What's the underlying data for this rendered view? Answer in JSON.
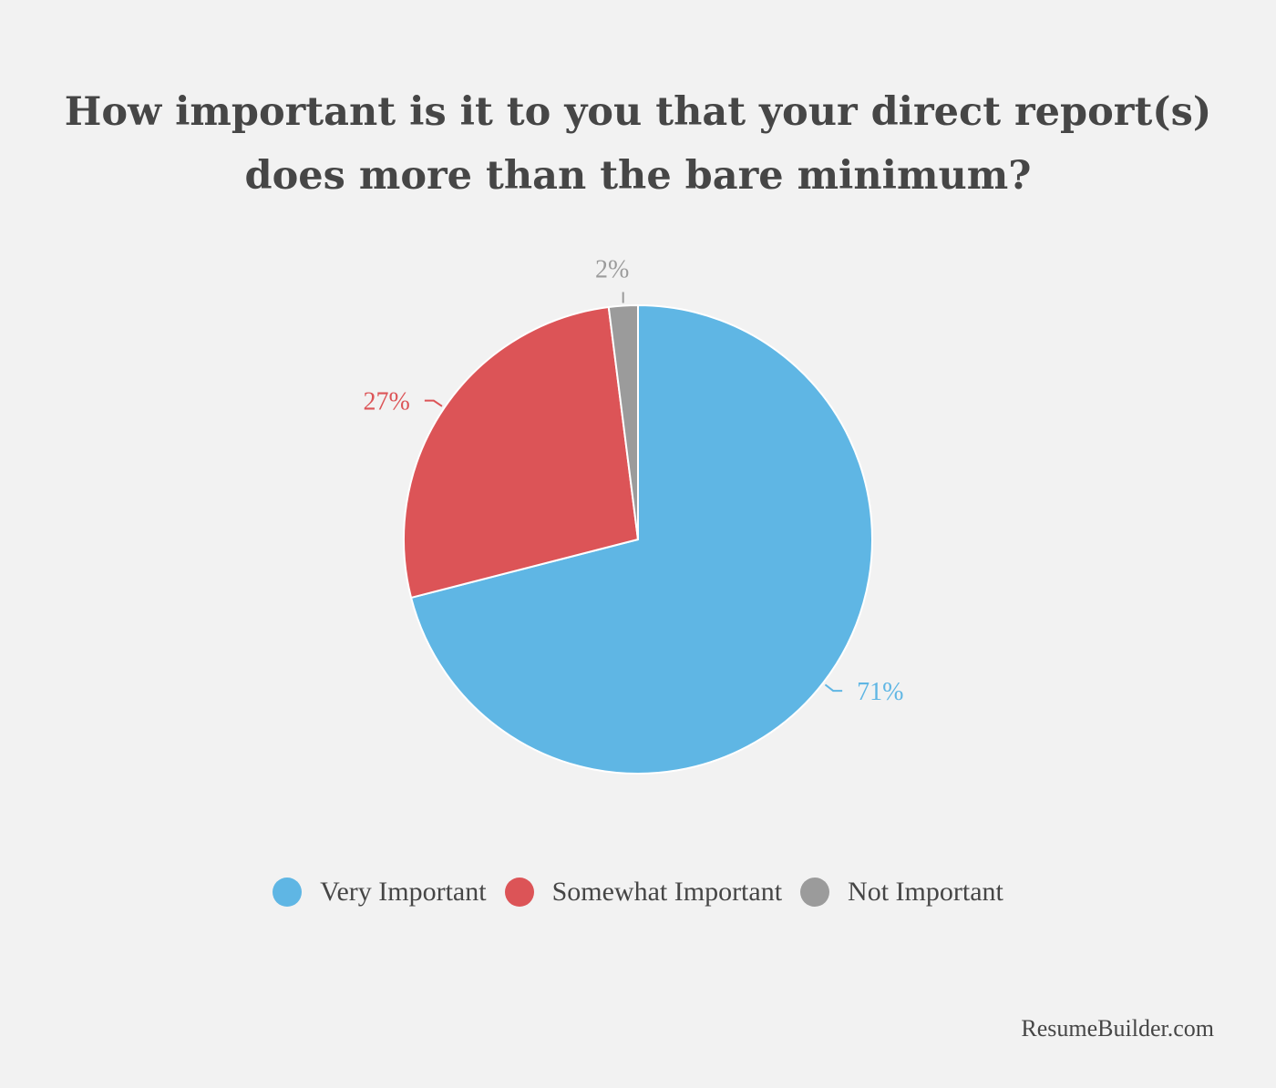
{
  "chart_data": {
    "type": "pie",
    "title": "How important is it to you that your direct report(s) does more than the bare minimum?",
    "slices": [
      {
        "name": "Very Important",
        "value": 71,
        "label": "71%",
        "color": "#5fb6e4"
      },
      {
        "name": "Somewhat Important",
        "value": 27,
        "label": "27%",
        "color": "#dc5457"
      },
      {
        "name": "Not Important",
        "value": 2,
        "label": "2%",
        "color": "#9b9b9b"
      }
    ],
    "legend_placement": "bottom"
  },
  "legend": [
    {
      "label": "Very Important",
      "color": "#5fb6e4"
    },
    {
      "label": "Somewhat Important",
      "color": "#dc5457"
    },
    {
      "label": "Not Important",
      "color": "#9b9b9b"
    }
  ],
  "source": "ResumeBuilder.com"
}
